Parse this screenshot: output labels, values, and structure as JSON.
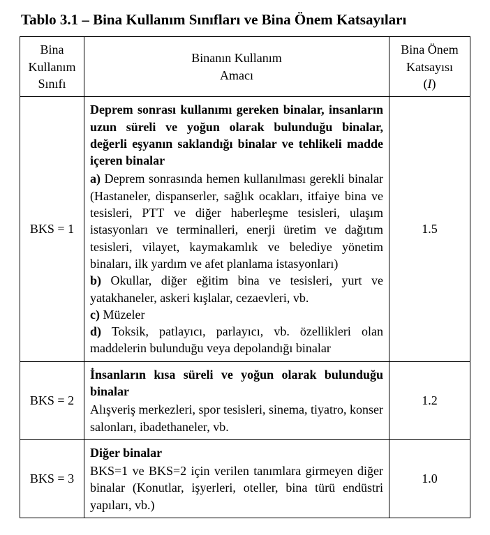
{
  "title": "Tablo 3.1 – Bina Kullanım Sınıfları ve Bina Önem Katsayıları",
  "columns": {
    "col1_line1": "Bina",
    "col1_line2": "Kullanım",
    "col1_line3": "Sınıfı",
    "col2_line1": "Binanın Kullanım",
    "col2_line2": "Amacı",
    "col3_line1": "Bina Önem",
    "col3_line2": "Katsayısı",
    "col3_sym_left": "(",
    "col3_sym_var": "I",
    "col3_sym_right": ")"
  },
  "rows": [
    {
      "class_label": "BKS = 1",
      "factor": "1.5",
      "heading": "Deprem sonrası kullanımı gereken binalar, insanların uzun süreli ve yoğun olarak bulunduğu binalar, değerli eşyanın saklandığı binalar ve tehlikeli madde içeren binalar",
      "items": [
        {
          "label": "a)",
          "text": "Deprem sonrasında hemen kullanılması gerekli binalar (Hastaneler, dispanserler, sağlık ocakları, itfaiye bina ve tesisleri, PTT ve diğer haberleşme tesisleri, ulaşım istasyonları ve terminalleri, enerji üretim ve dağıtım tesisleri, vilayet, kaymakamlık ve belediye yönetim binaları, ilk yardım ve afet planlama istasyonları)"
        },
        {
          "label": "b)",
          "text": "Okullar, diğer eğitim bina ve tesisleri, yurt ve yatakhaneler, askeri kışlalar, cezaevleri, vb."
        },
        {
          "label": "c)",
          "text": "Müzeler"
        },
        {
          "label": "d)",
          "text": "Toksik, patlayıcı, parlayıcı, vb. özellikleri olan maddelerin bulunduğu veya depolandığı binalar"
        }
      ]
    },
    {
      "class_label": "BKS = 2",
      "factor": "1.2",
      "heading": "İnsanların kısa süreli ve yoğun olarak bulunduğu binalar",
      "body": "Alışveriş merkezleri, spor tesisleri, sinema, tiyatro, konser salonları, ibadethaneler, vb."
    },
    {
      "class_label": "BKS = 3",
      "factor": "1.0",
      "heading": "Diğer binalar",
      "body": "BKS=1 ve BKS=2 için verilen tanımlara girmeyen diğer binalar (Konutlar, işyerleri, oteller, bina türü endüstri yapıları, vb.)"
    }
  ]
}
